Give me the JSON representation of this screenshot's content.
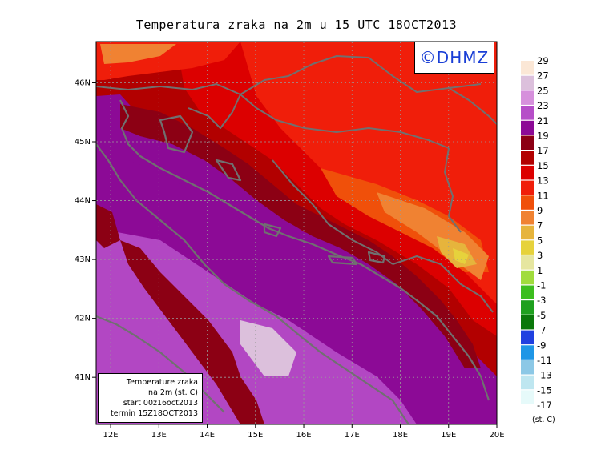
{
  "title": "Temperatura zraka na 2m u 15 UTC 18OCT2013",
  "credit": "©DHMZ",
  "info_box": {
    "line1": "Temperature zraka",
    "line2": "na 2m (st. C)",
    "line3": "start 00z16oct2013",
    "line4": "termin 15Z18OCT2013"
  },
  "axes": {
    "x_ticks": [
      "12E",
      "13E",
      "14E",
      "15E",
      "16E",
      "17E",
      "18E",
      "19E",
      "20E"
    ],
    "y_ticks": [
      "41N",
      "42N",
      "43N",
      "44N",
      "45N",
      "46N"
    ]
  },
  "legend": {
    "unit": "(st. C)",
    "labels": [
      "29",
      "27",
      "25",
      "23",
      "21",
      "19",
      "17",
      "15",
      "13",
      "11",
      "9",
      "7",
      "5",
      "3",
      "1",
      "-1",
      "-3",
      "-5",
      "-7",
      "-9",
      "-11",
      "-13",
      "-15",
      "-17"
    ],
    "colors": [
      "#fbe7d6",
      "#dcc0dc",
      "#d690dc",
      "#b64ec8",
      "#8c0a96",
      "#8c0014",
      "#b20000",
      "#dc0000",
      "#f01e0a",
      "#f0500a",
      "#f08232",
      "#e6b43c",
      "#e6d23c",
      "#e6e6a0",
      "#a0dc3c",
      "#3cbe1e",
      "#1ea01e",
      "#0a780a",
      "#2040e0",
      "#1e96e6",
      "#8cc8e6",
      "#bee6f0",
      "#e6fafa",
      "#ffffff"
    ]
  },
  "map": {
    "lon_range": [
      11.7,
      20.0
    ],
    "lat_range": [
      40.2,
      46.7
    ],
    "temperature_colors": {
      "sea": "#8c0a96",
      "sea_warm": "#b64ec8",
      "sea_warmest": "#dcc0dc",
      "land_hot": "#8c0014",
      "land_warm": "#b20000",
      "land_mild": "#dc0000",
      "land_cool": "#f01e0a",
      "land_cooler": "#f0500a",
      "land_coolest": "#f08232",
      "highland": "#e6b43c",
      "peak": "#e6d23c"
    },
    "coast_color": "#707070",
    "grid_color": "#9a9a9a"
  }
}
